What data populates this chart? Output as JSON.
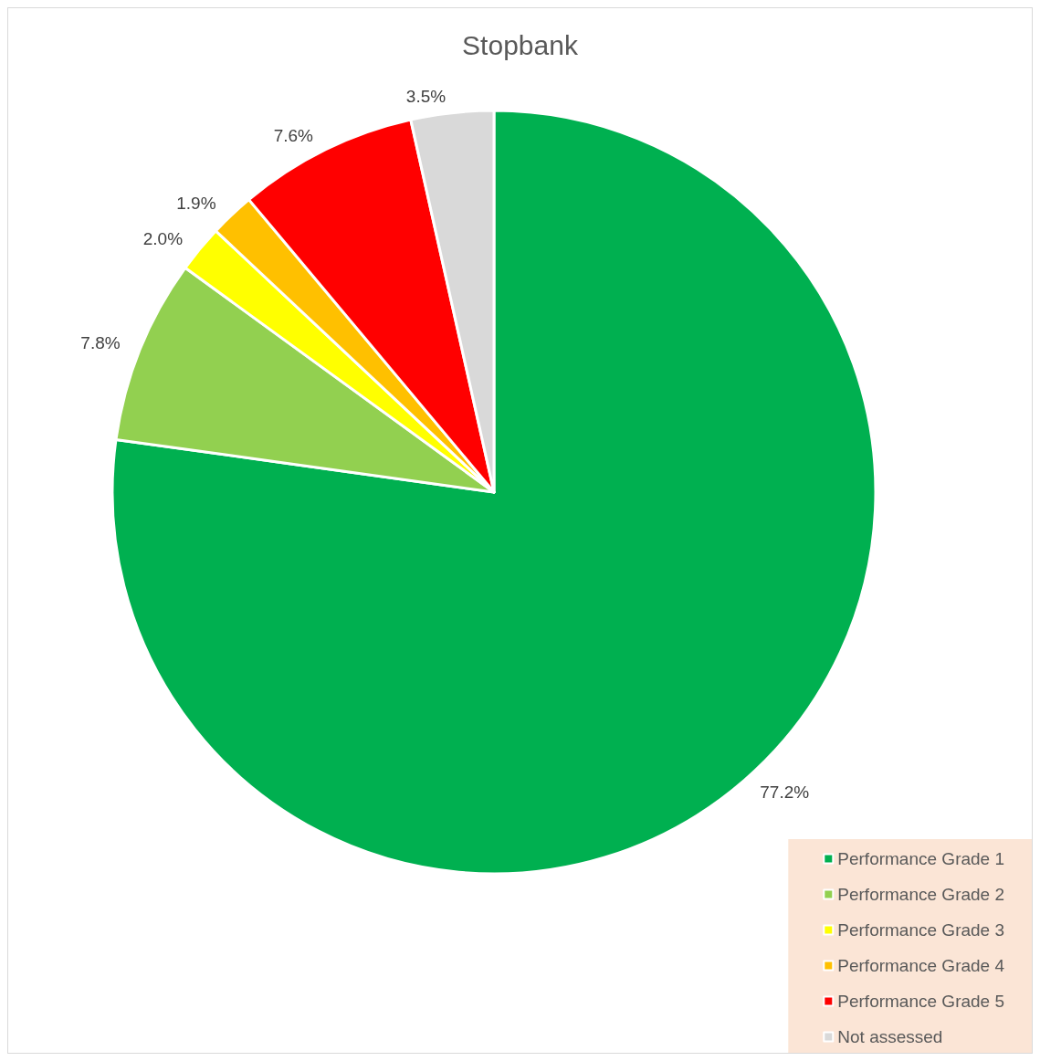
{
  "chart_data": {
    "type": "pie",
    "title": "Stopbank",
    "categories": [
      "Performance Grade 1",
      "Performance Grade 2",
      "Performance Grade 3",
      "Performance Grade 4",
      "Performance Grade 5",
      "Not assessed"
    ],
    "values": [
      77.2,
      7.8,
      2.0,
      1.9,
      7.6,
      3.5
    ],
    "colors": [
      "#00b050",
      "#92d050",
      "#ffff00",
      "#ffc000",
      "#ff0000",
      "#d9d9d9"
    ],
    "value_labels": [
      "77.2%",
      "7.8%",
      "2.0%",
      "1.9%",
      "7.6%",
      "3.5%"
    ],
    "legend": "bottom right"
  }
}
